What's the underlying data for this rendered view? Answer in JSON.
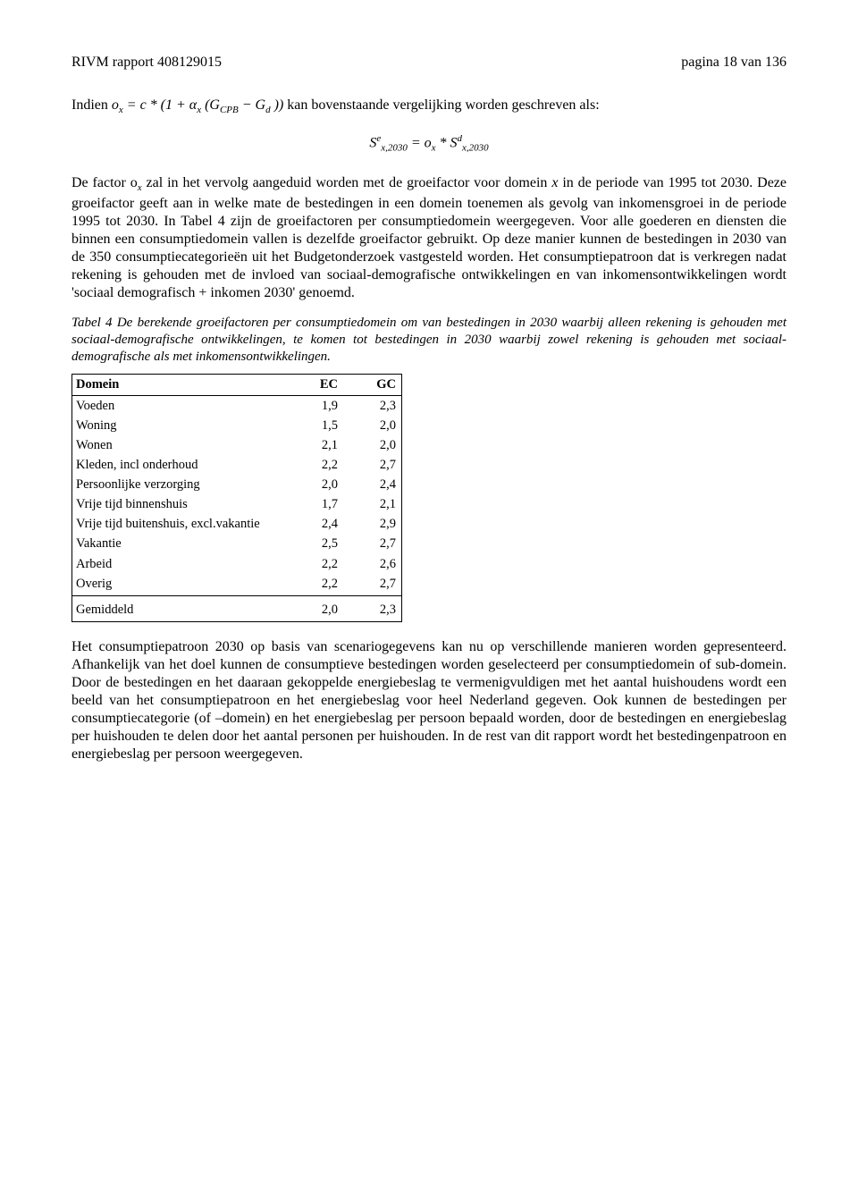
{
  "header": {
    "left": "RIVM rapport 408129015",
    "right": "pagina 18 van 136"
  },
  "formula1_prefix": "Indien ",
  "formula1_eq_lhs": "o",
  "formula1_eq_lhs_sub": "x",
  "formula1_eq_mid": " = c * (1 + α",
  "formula1_eq_mid_sub": "x",
  "formula1_eq_paren": " (G",
  "formula1_eq_cpb_sub": "CPB",
  "formula1_eq_minus": " − G",
  "formula1_eq_d_sub": "d",
  "formula1_eq_close": " ))",
  "formula1_suffix": " kan bovenstaande vergelijking worden geschreven als:",
  "formula2": {
    "S1": "S",
    "S1_sup": "e",
    "S1_sub": "x,2030",
    "eq": " = o",
    "o_sub": "x",
    "star": " * S",
    "S2_sup": "d",
    "S2_sub": "x,2030"
  },
  "para1_a": "De factor o",
  "para1_a_sub": "x",
  "para1_b": " zal in het vervolg aangeduid worden met de groeifactor voor domein ",
  "para1_x": "x",
  "para1_c": " in de periode van 1995 tot 2030. Deze groeifactor geeft aan in welke mate de bestedingen in een domein toenemen als gevolg van inkomensgroei in de periode 1995 tot 2030. In Tabel 4 zijn de groeifactoren per consumptiedomein weergegeven. Voor alle goederen en diensten die binnen een consumptiedomein vallen is dezelfde groeifactor gebruikt. Op deze manier kunnen de bestedingen in 2030 van de 350 consumptiecategorieën uit het Budgetonderzoek vastgesteld worden. Het consumptiepatroon dat is verkregen nadat rekening is gehouden met de invloed van sociaal-demografische ontwikkelingen en van inkomensontwikkelingen wordt 'sociaal demografisch + inkomen 2030' genoemd.",
  "caption": "Tabel 4 De berekende groeifactoren per consumptiedomein om van bestedingen in 2030 waarbij alleen rekening is gehouden met sociaal-demografische ontwikkelingen, te komen tot bestedingen in 2030 waarbij zowel rekening is gehouden met sociaal-demografische als met inkomensontwikkelingen.",
  "table": {
    "columns": [
      "Domein",
      "EC",
      "GC"
    ],
    "rows": [
      [
        "Voeden",
        "1,9",
        "2,3"
      ],
      [
        "Woning",
        "1,5",
        "2,0"
      ],
      [
        "Wonen",
        "2,1",
        "2,0"
      ],
      [
        "Kleden, incl onderhoud",
        "2,2",
        "2,7"
      ],
      [
        "Persoonlijke verzorging",
        "2,0",
        "2,4"
      ],
      [
        "Vrije tijd binnenshuis",
        "1,7",
        "2,1"
      ],
      [
        "Vrije tijd buitenshuis, excl.vakantie",
        "2,4",
        "2,9"
      ],
      [
        "Vakantie",
        "2,5",
        "2,7"
      ],
      [
        "Arbeid",
        "2,2",
        "2,6"
      ],
      [
        "Overig",
        "2,2",
        "2,7"
      ]
    ],
    "summary": [
      "Gemiddeld",
      "2,0",
      "2,3"
    ]
  },
  "para2": "Het consumptiepatroon 2030 op basis van scenariogegevens kan nu op verschillende manieren worden gepresenteerd. Afhankelijk van het doel kunnen de consumptieve bestedingen worden geselecteerd per consumptiedomein of sub-domein. Door de bestedingen en het daaraan gekoppelde energiebeslag te vermenigvuldigen met het aantal huishoudens wordt een beeld van het consumptiepatroon en het energiebeslag voor heel Nederland gegeven. Ook kunnen de bestedingen per consumptiecategorie (of –domein) en het energiebeslag per persoon bepaald worden, door de bestedingen en energiebeslag per huishouden te delen door het aantal personen per huishouden. In de rest van dit rapport wordt het bestedingenpatroon en energiebeslag per persoon weergegeven."
}
